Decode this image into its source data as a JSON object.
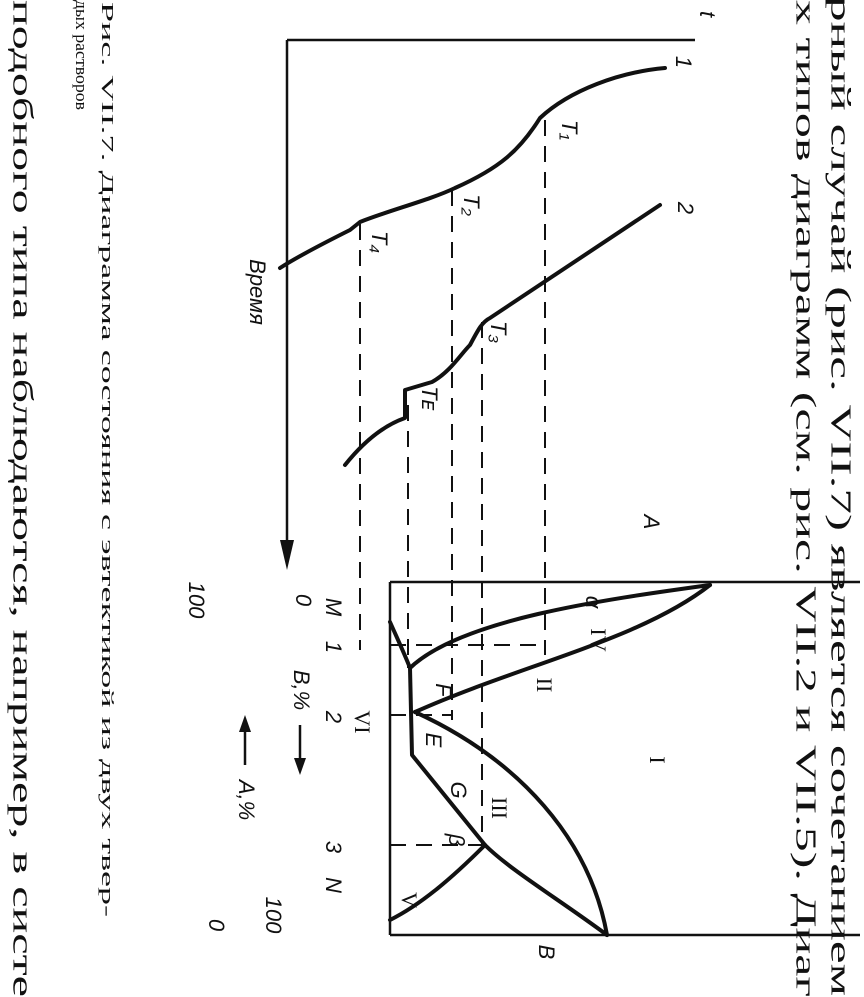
{
  "body_text": {
    "lines": [
      "рный случай (рис. VII.7) является сочетанием",
      "х типов диаграмм (см. рис. VII.2 и VII.5). Диаг"
    ],
    "bottom_line": "подобного типа наблюдаются, например, в систе"
  },
  "caption": {
    "lines": [
      "Рис. VII.7. Диаграмма состояния с эвтектикой из двух твер-",
      "дых растворов"
    ]
  },
  "figure": {
    "cooling_curves": {
      "axis_label": "t",
      "time_label": "Время",
      "curve_labels": [
        "1",
        "2"
      ],
      "points": [
        "T₁",
        "T₂",
        "T₃",
        "T₄",
        "Tᴇ"
      ]
    },
    "phase_diagram": {
      "corners": [
        "A",
        "B",
        "M",
        "N"
      ],
      "phases": [
        "α",
        "β"
      ],
      "regions": [
        "I",
        "II",
        "III",
        "IV",
        "V",
        "VI"
      ],
      "points": [
        "F",
        "E",
        "G"
      ],
      "compositions": [
        "1",
        "2",
        "3"
      ],
      "b_axis": {
        "label": "B,%",
        "start": "0",
        "end": "100"
      },
      "a_axis": {
        "label": "A,%",
        "start": "100",
        "end": "0"
      }
    }
  }
}
